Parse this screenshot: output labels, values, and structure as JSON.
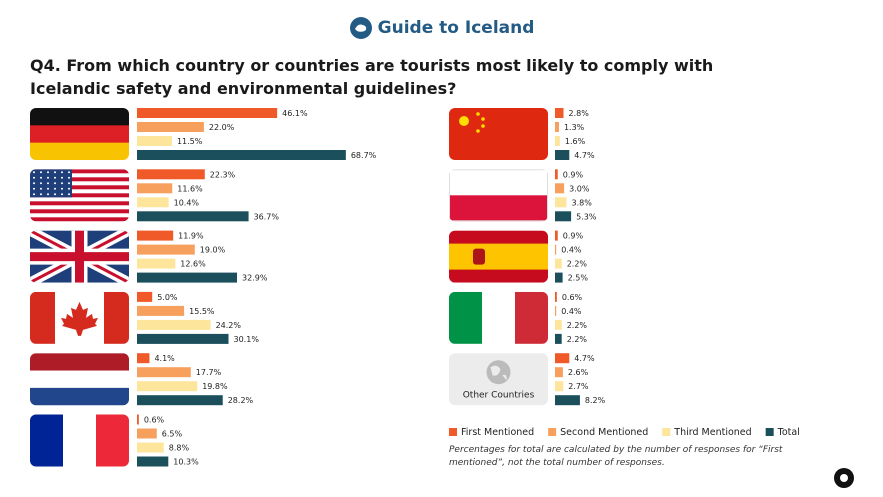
{
  "header": {
    "brand": "Guide to Iceland"
  },
  "chart_data": {
    "type": "grouped-bar-horizontal",
    "title": "Q4. From which country or countries are tourists most likely to comply with Icelandic safety and environmental guidelines?",
    "categories": [
      null,
      null,
      null,
      null,
      null,
      null,
      null,
      null,
      null,
      null,
      "Other Countries"
    ],
    "series": [
      {
        "name": "First Mentioned",
        "color": "#f05a28",
        "values": [
          46.1,
          22.3,
          11.9,
          5.0,
          4.1,
          0.6,
          2.8,
          0.9,
          0.9,
          0.6,
          4.7
        ],
        "value_labels": [
          "46.1%",
          "22.3%",
          "11.9%",
          "5.0%",
          "4.1%",
          "0.6%",
          "2.8%",
          "0.9%",
          "0.9%",
          "0.6%",
          "4.7%"
        ]
      },
      {
        "name": "Second Mentioned",
        "color": "#f7a05e",
        "values": [
          22.0,
          11.6,
          19.0,
          15.5,
          17.7,
          6.5,
          1.3,
          3.0,
          0.4,
          0.4,
          2.6
        ],
        "value_labels": [
          "22.0%",
          "11.6%",
          "19.0%",
          "15.5%",
          "17.7%",
          "6.5%",
          "1.3%",
          "3.0%",
          "0.4%",
          "0.4%",
          "2.6%"
        ]
      },
      {
        "name": "Third Mentioned",
        "color": "#fde59c",
        "values": [
          11.5,
          10.4,
          12.6,
          24.2,
          19.8,
          8.8,
          1.6,
          3.8,
          2.2,
          2.2,
          2.7
        ],
        "value_labels": [
          "11.5%",
          "10.4%",
          "12.6%",
          "24.2%",
          "19.8%",
          "8.8%",
          "1.6%",
          "3.8%",
          "2.2%",
          "2.2%",
          "2.7%"
        ]
      },
      {
        "name": "Total",
        "color": "#1c4f5c",
        "values": [
          68.7,
          36.7,
          32.9,
          30.1,
          28.2,
          10.3,
          4.7,
          5.3,
          2.5,
          2.2,
          8.2
        ],
        "value_labels": [
          "68.7%",
          "36.7%",
          "32.9%",
          "30.1%",
          "28.2%",
          "10.3%",
          "4.7%",
          "5.3%",
          "2.5%",
          "2.2%",
          "8.2%"
        ]
      }
    ],
    "note": "Percentages for total are calculated by the number of responses for “First mentioned”, not the total number of responses."
  }
}
